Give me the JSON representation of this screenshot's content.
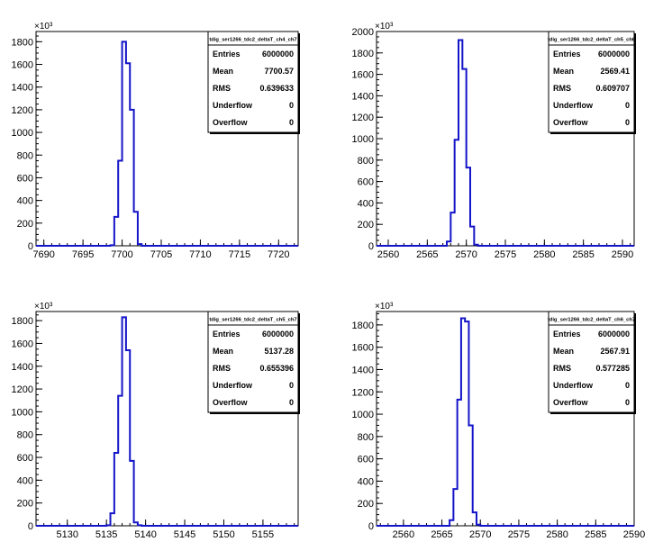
{
  "chart_data": [
    {
      "type": "histogram",
      "stats_title": "tdig_ser1266_tdc2_deltaT_ch4_ch7",
      "stats": [
        {
          "label": "Entries",
          "value": "6000000"
        },
        {
          "label": "Mean",
          "value": "7700.57"
        },
        {
          "label": "RMS",
          "value": "0.639633"
        },
        {
          "label": "Underflow",
          "value": "0"
        },
        {
          "label": "Overflow",
          "value": "0"
        }
      ],
      "exponent_label": "×10³",
      "xlim": [
        7689,
        7722.5
      ],
      "ylim": [
        0,
        1890
      ],
      "xticks": [
        7690,
        7695,
        7700,
        7705,
        7710,
        7715,
        7720
      ],
      "yticks": [
        0,
        200,
        400,
        600,
        800,
        1000,
        1200,
        1400,
        1600,
        1800
      ],
      "bins": [
        {
          "x0": 7698.5,
          "x1": 7699.0,
          "y": 5
        },
        {
          "x0": 7699.0,
          "x1": 7699.5,
          "y": 255
        },
        {
          "x0": 7699.5,
          "x1": 7700.0,
          "y": 750
        },
        {
          "x0": 7700.0,
          "x1": 7700.5,
          "y": 1800
        },
        {
          "x0": 7700.5,
          "x1": 7701.0,
          "y": 1610
        },
        {
          "x0": 7701.0,
          "x1": 7701.5,
          "y": 1200
        },
        {
          "x0": 7701.5,
          "x1": 7702.0,
          "y": 300
        },
        {
          "x0": 7702.0,
          "x1": 7702.5,
          "y": 15
        }
      ]
    },
    {
      "type": "histogram",
      "stats_title": "tdig_ser1266_tdc2_deltaT_ch5_ch6",
      "stats": [
        {
          "label": "Entries",
          "value": "6000000"
        },
        {
          "label": "Mean",
          "value": "2569.41"
        },
        {
          "label": "RMS",
          "value": "0.609707"
        },
        {
          "label": "Underflow",
          "value": "0"
        },
        {
          "label": "Overflow",
          "value": "0"
        }
      ],
      "exponent_label": "×10³",
      "xlim": [
        2558.5,
        2591.5
      ],
      "ylim": [
        0,
        2000
      ],
      "xticks": [
        2560,
        2565,
        2570,
        2575,
        2580,
        2585,
        2590
      ],
      "yticks": [
        0,
        200,
        400,
        600,
        800,
        1000,
        1200,
        1400,
        1600,
        1800,
        2000
      ],
      "bins": [
        {
          "x0": 2567.5,
          "x1": 2568.0,
          "y": 40
        },
        {
          "x0": 2568.0,
          "x1": 2568.5,
          "y": 310
        },
        {
          "x0": 2568.5,
          "x1": 2569.0,
          "y": 990
        },
        {
          "x0": 2569.0,
          "x1": 2569.5,
          "y": 1920
        },
        {
          "x0": 2569.5,
          "x1": 2570.0,
          "y": 1650
        },
        {
          "x0": 2570.0,
          "x1": 2570.5,
          "y": 730
        },
        {
          "x0": 2570.5,
          "x1": 2571.0,
          "y": 180
        },
        {
          "x0": 2571.0,
          "x1": 2571.5,
          "y": 10
        }
      ]
    },
    {
      "type": "histogram",
      "stats_title": "tdig_ser1266_tdc2_deltaT_ch5_ch7",
      "stats": [
        {
          "label": "Entries",
          "value": "6000000"
        },
        {
          "label": "Mean",
          "value": "5137.28"
        },
        {
          "label": "RMS",
          "value": "0.655396"
        },
        {
          "label": "Underflow",
          "value": "0"
        },
        {
          "label": "Overflow",
          "value": "0"
        }
      ],
      "exponent_label": "×10³",
      "xlim": [
        5126,
        5159.5
      ],
      "ylim": [
        0,
        1880
      ],
      "xticks": [
        5130,
        5135,
        5140,
        5145,
        5150,
        5155
      ],
      "yticks": [
        0,
        200,
        400,
        600,
        800,
        1000,
        1200,
        1400,
        1600,
        1800
      ],
      "bins": [
        {
          "x0": 5135.0,
          "x1": 5135.5,
          "y": 5
        },
        {
          "x0": 5135.5,
          "x1": 5136.0,
          "y": 110
        },
        {
          "x0": 5136.0,
          "x1": 5136.5,
          "y": 640
        },
        {
          "x0": 5136.5,
          "x1": 5137.0,
          "y": 1140
        },
        {
          "x0": 5137.0,
          "x1": 5137.5,
          "y": 1830
        },
        {
          "x0": 5137.5,
          "x1": 5138.0,
          "y": 1540
        },
        {
          "x0": 5138.0,
          "x1": 5138.5,
          "y": 570
        },
        {
          "x0": 5138.5,
          "x1": 5139.0,
          "y": 30
        },
        {
          "x0": 5139.0,
          "x1": 5139.5,
          "y": 5
        }
      ]
    },
    {
      "type": "histogram",
      "stats_title": "tdig_ser1266_tdc2_deltaT_ch6_ch7",
      "stats": [
        {
          "label": "Entries",
          "value": "6000000"
        },
        {
          "label": "Mean",
          "value": "2567.91"
        },
        {
          "label": "RMS",
          "value": "0.577285"
        },
        {
          "label": "Underflow",
          "value": "0"
        },
        {
          "label": "Overflow",
          "value": "0"
        }
      ],
      "exponent_label": "×10³",
      "xlim": [
        2556.5,
        2590
      ],
      "ylim": [
        0,
        1920
      ],
      "xticks": [
        2560,
        2565,
        2570,
        2575,
        2580,
        2585,
        2590
      ],
      "yticks": [
        0,
        200,
        400,
        600,
        800,
        1000,
        1200,
        1400,
        1600,
        1800
      ],
      "bins": [
        {
          "x0": 2566.0,
          "x1": 2566.5,
          "y": 50
        },
        {
          "x0": 2566.5,
          "x1": 2567.0,
          "y": 330
        },
        {
          "x0": 2567.0,
          "x1": 2567.5,
          "y": 1130
        },
        {
          "x0": 2567.5,
          "x1": 2568.0,
          "y": 1860
        },
        {
          "x0": 2568.0,
          "x1": 2568.5,
          "y": 1830
        },
        {
          "x0": 2568.5,
          "x1": 2569.0,
          "y": 900
        },
        {
          "x0": 2569.0,
          "x1": 2569.5,
          "y": 120
        },
        {
          "x0": 2569.5,
          "x1": 2570.0,
          "y": 10
        }
      ]
    }
  ]
}
